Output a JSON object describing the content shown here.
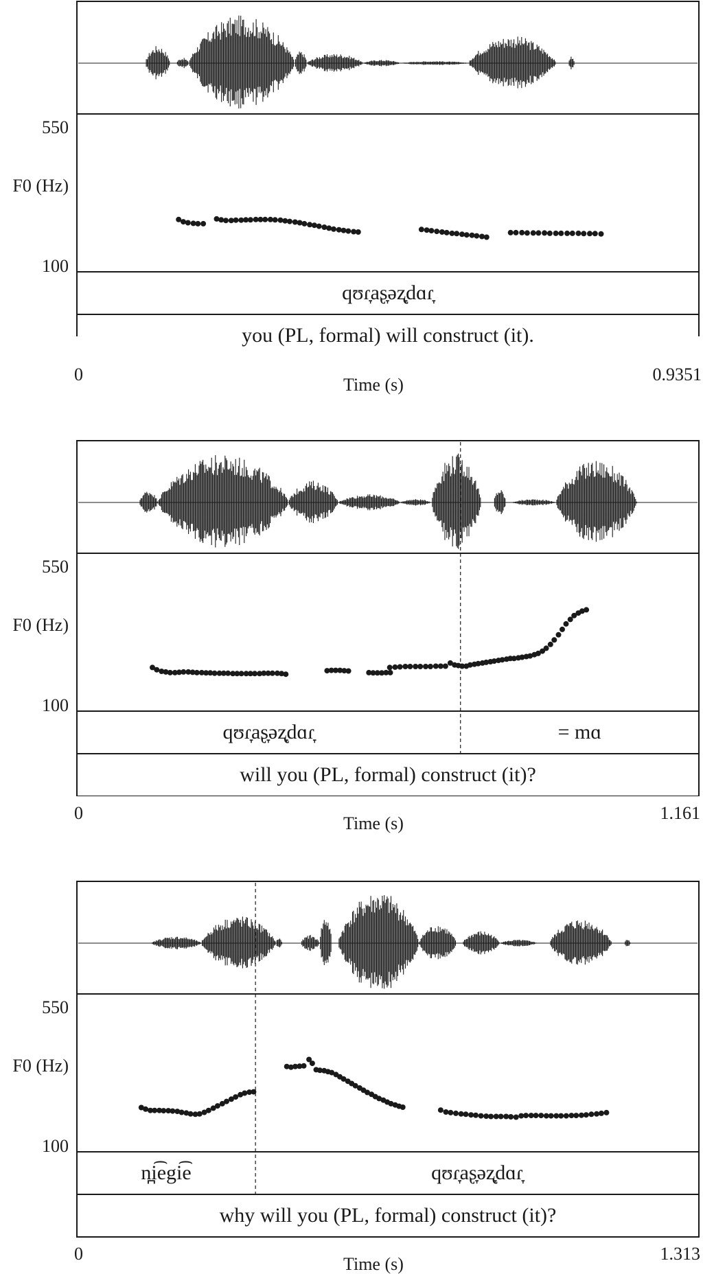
{
  "chart_data": [
    {
      "type": "scatter",
      "ylabel": "F0 (Hz)",
      "yticks": [
        "550",
        "100"
      ],
      "ylim": [
        100,
        550
      ],
      "xlabel": "Time (s)",
      "xticks": [
        "0",
        "0.9351"
      ],
      "xlim": [
        0,
        0.9351
      ],
      "boundaries": [],
      "tiers": [
        {
          "segments": [
            {
              "start": 0,
              "end": 0.9351,
              "text": "qʊɾ̞aʂ̞əʐ̞dɑɾ̞"
            }
          ]
        },
        {
          "segments": [
            {
              "start": 0,
              "end": 0.9351,
              "text": "you (PL, formal) will construct (it)."
            }
          ]
        }
      ],
      "series": [
        {
          "x": [
            0.153,
            0.16,
            0.167,
            0.175,
            0.182,
            0.19
          ],
          "y": [
            259,
            252,
            249,
            247,
            246,
            246
          ]
        },
        {
          "x": [
            0.21,
            0.217,
            0.224,
            0.232,
            0.239,
            0.247,
            0.254,
            0.261,
            0.269,
            0.276,
            0.283,
            0.291,
            0.298,
            0.306,
            0.313,
            0.32,
            0.328,
            0.335,
            0.342,
            0.35,
            0.357,
            0.364,
            0.372,
            0.379,
            0.386,
            0.394,
            0.401,
            0.408,
            0.416,
            0.423
          ],
          "y": [
            261,
            258,
            256,
            256,
            257,
            257,
            258,
            258,
            259,
            259,
            259,
            259,
            258,
            257,
            255,
            253,
            251,
            249,
            246,
            243,
            241,
            238,
            235,
            232,
            229,
            227,
            225,
            223,
            221,
            220
          ]
        },
        {
          "x": [
            0.518,
            0.526,
            0.533,
            0.541,
            0.549,
            0.556,
            0.564,
            0.571,
            0.579,
            0.586,
            0.594,
            0.601,
            0.609,
            0.616
          ],
          "y": [
            228,
            226,
            224,
            222,
            220,
            218,
            216,
            215,
            213,
            211,
            210,
            208,
            206,
            204
          ]
        },
        {
          "x": [
            0.652,
            0.66,
            0.669,
            0.677,
            0.686,
            0.694,
            0.703,
            0.711,
            0.72,
            0.728,
            0.737,
            0.745,
            0.754,
            0.762,
            0.771,
            0.779,
            0.788
          ],
          "y": [
            218,
            218,
            218,
            217,
            217,
            217,
            217,
            216,
            216,
            216,
            216,
            216,
            216,
            215,
            215,
            215,
            214
          ]
        }
      ]
    },
    {
      "type": "scatter",
      "ylabel": "F0 (Hz)",
      "yticks": [
        "550",
        "100"
      ],
      "ylim": [
        100,
        550
      ],
      "xlabel": "Time (s)",
      "xticks": [
        "0",
        "1.161"
      ],
      "xlim": [
        0,
        1.161
      ],
      "boundaries": [
        0.716
      ],
      "tiers": [
        {
          "segments": [
            {
              "start": 0,
              "end": 0.716,
              "text": "qʊɾ̞aʂ̞əʐ̞dɑɾ̞"
            },
            {
              "start": 0.716,
              "end": 1.161,
              "text": "= mɑ"
            }
          ]
        },
        {
          "segments": [
            {
              "start": 0,
              "end": 1.161,
              "text": "will you (PL, formal) construct (it)?"
            }
          ]
        }
      ],
      "series": [
        {
          "x": [
            0.141,
            0.149,
            0.158,
            0.166,
            0.174,
            0.183,
            0.191,
            0.199,
            0.208,
            0.216,
            0.224,
            0.233,
            0.241,
            0.249,
            0.257,
            0.266,
            0.274,
            0.282,
            0.291,
            0.299,
            0.307,
            0.316,
            0.324,
            0.332,
            0.341,
            0.349,
            0.357,
            0.365,
            0.374,
            0.382,
            0.39
          ],
          "y": [
            232,
            225,
            220,
            218,
            216,
            216,
            217,
            218,
            218,
            217,
            216,
            216,
            215,
            215,
            214,
            214,
            214,
            214,
            213,
            213,
            213,
            213,
            213,
            213,
            213,
            214,
            214,
            214,
            214,
            213,
            211
          ]
        },
        {
          "x": [
            0.467,
            0.475,
            0.483,
            0.491,
            0.499,
            0.507
          ],
          "y": [
            222,
            223,
            223,
            223,
            222,
            221
          ]
        },
        {
          "x": [
            0.545,
            0.553,
            0.561,
            0.569,
            0.577,
            0.585
          ],
          "y": [
            216,
            215,
            215,
            215,
            216,
            216
          ]
        },
        {
          "x": [
            0.584,
            0.594,
            0.603,
            0.613,
            0.622,
            0.632,
            0.641,
            0.651,
            0.66,
            0.67,
            0.679,
            0.688
          ],
          "y": [
            232,
            233,
            234,
            235,
            235,
            235,
            235,
            235,
            235,
            236,
            236,
            236
          ]
        },
        {
          "x": [
            0.697
          ],
          "y": [
            246
          ]
        },
        {
          "x": [
            0.705,
            0.712,
            0.719,
            0.727,
            0.734,
            0.742,
            0.749,
            0.757,
            0.764,
            0.772,
            0.779,
            0.787,
            0.794,
            0.802,
            0.809,
            0.816,
            0.824,
            0.831,
            0.839,
            0.846,
            0.854,
            0.861,
            0.869,
            0.876,
            0.884,
            0.891,
            0.899,
            0.906,
            0.913,
            0.921,
            0.928,
            0.936,
            0.943,
            0.951
          ],
          "y": [
            240,
            238,
            236,
            236,
            240,
            242,
            244,
            246,
            248,
            250,
            252,
            254,
            256,
            258,
            260,
            260,
            262,
            264,
            266,
            268,
            272,
            276,
            283,
            292,
            304,
            318,
            334,
            351,
            368,
            382,
            394,
            402,
            408,
            412
          ]
        }
      ]
    },
    {
      "type": "scatter",
      "ylabel": "F0 (Hz)",
      "yticks": [
        "550",
        "100"
      ],
      "ylim": [
        100,
        550
      ],
      "xlabel": "Time (s)",
      "xticks": [
        "0",
        "1.313"
      ],
      "xlim": [
        0,
        1.313
      ],
      "boundaries": [
        0.377
      ],
      "tiers": [
        {
          "segments": [
            {
              "start": 0,
              "end": 0.377,
              "text": "n̪i͡egi͡e"
            },
            {
              "start": 0.377,
              "end": 1.313,
              "text": "qʊɾ̞aʂ̞əʐ̞dɑɾ̞"
            }
          ]
        },
        {
          "segments": [
            {
              "start": 0,
              "end": 1.313,
              "text": "why will you (PL, formal) construct (it)?"
            }
          ]
        }
      ],
      "series": [
        {
          "x": [
            0.136,
            0.145,
            0.155,
            0.164,
            0.174,
            0.183,
            0.193,
            0.202,
            0.212,
            0.221,
            0.231,
            0.24,
            0.25,
            0.259,
            0.269,
            0.278,
            0.288,
            0.297,
            0.307,
            0.316,
            0.326,
            0.335,
            0.345,
            0.354,
            0.364,
            0.373
          ],
          "y": [
            234,
            229,
            225,
            225,
            225,
            224,
            224,
            223,
            222,
            219,
            217,
            214,
            213,
            214,
            219,
            225,
            232,
            239,
            246,
            253,
            260,
            267,
            274,
            279,
            282,
            283
          ]
        },
        {
          "x": [
            0.443,
            0.452,
            0.461,
            0.47,
            0.479
          ],
          "y": [
            362,
            360,
            362,
            363,
            364
          ]
        },
        {
          "x": [
            0.49,
            0.497
          ],
          "y": [
            384,
            372
          ]
        },
        {
          "x": [
            0.505,
            0.513,
            0.522,
            0.53,
            0.538,
            0.547,
            0.555,
            0.563,
            0.572,
            0.58,
            0.588,
            0.597,
            0.605,
            0.613,
            0.622,
            0.63,
            0.638,
            0.647,
            0.655,
            0.663,
            0.672,
            0.68,
            0.688
          ],
          "y": [
            352,
            350,
            349,
            346,
            343,
            337,
            330,
            323,
            316,
            309,
            302,
            295,
            288,
            281,
            275,
            268,
            262,
            257,
            251,
            246,
            242,
            238,
            235
          ]
        },
        {
          "x": [
            0.768,
            0.779,
            0.789,
            0.8,
            0.811,
            0.821,
            0.832,
            0.842,
            0.853,
            0.864,
            0.874,
            0.885,
            0.895,
            0.906,
            0.916,
            0.927,
            0.938,
            0.948,
            0.959,
            0.969,
            0.98,
            0.991,
            1.001,
            1.012,
            1.022,
            1.033,
            1.044,
            1.054,
            1.065,
            1.075,
            1.086,
            1.097,
            1.107,
            1.118
          ],
          "y": [
            226,
            220,
            218,
            216,
            214,
            213,
            211,
            210,
            208,
            207,
            206,
            206,
            206,
            206,
            205,
            204,
            208,
            209,
            209,
            209,
            209,
            208,
            208,
            208,
            208,
            208,
            209,
            209,
            210,
            211,
            213,
            214,
            216,
            218
          ]
        }
      ]
    }
  ]
}
